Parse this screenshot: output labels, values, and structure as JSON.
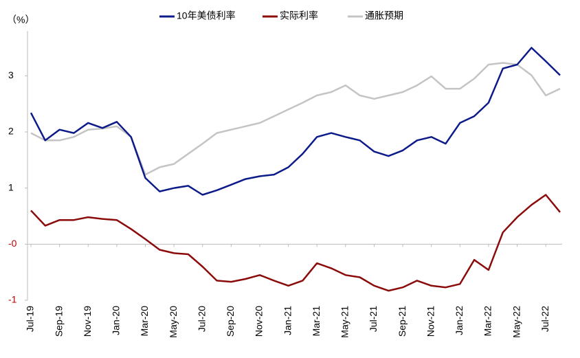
{
  "chart_data": {
    "type": "line",
    "y_unit_label": "（%）",
    "categories": [
      "Jul-19",
      null,
      "Sep-19",
      null,
      "Nov-19",
      null,
      "Jan-20",
      null,
      "Mar-20",
      null,
      "May-20",
      null,
      "Jul-20",
      null,
      "Sep-20",
      null,
      "Nov-20",
      null,
      "Jan-21",
      null,
      "Mar-21",
      null,
      "May-21",
      null,
      "Jul-21",
      null,
      "Sep-21",
      null,
      "Nov-21",
      null,
      "Jan-22",
      null,
      "Mar-22",
      null,
      "May-22",
      null,
      "Jul-22",
      null
    ],
    "series": [
      {
        "name": "10年美债利率",
        "color": "#0c1a8a",
        "values": [
          2.34,
          1.85,
          2.04,
          1.98,
          2.16,
          2.07,
          2.18,
          1.91,
          1.18,
          0.94,
          1.0,
          1.04,
          0.88,
          0.96,
          1.06,
          1.16,
          1.21,
          1.24,
          1.37,
          1.61,
          1.91,
          1.98,
          1.91,
          1.85,
          1.65,
          1.57,
          1.67,
          1.85,
          1.91,
          1.79,
          2.16,
          2.28,
          2.52,
          3.13,
          3.2,
          3.5,
          3.26,
          3.01
        ]
      },
      {
        "name": "实际利率",
        "color": "#8b0a0a",
        "values": [
          0.6,
          0.33,
          0.43,
          0.43,
          0.48,
          0.45,
          0.43,
          0.27,
          0.09,
          -0.1,
          -0.16,
          -0.18,
          -0.4,
          -0.65,
          -0.67,
          -0.62,
          -0.55,
          -0.65,
          -0.74,
          -0.65,
          -0.34,
          -0.43,
          -0.55,
          -0.59,
          -0.74,
          -0.83,
          -0.77,
          -0.65,
          -0.74,
          -0.77,
          -0.71,
          -0.28,
          -0.46,
          0.21,
          0.48,
          0.7,
          0.88,
          0.57
        ]
      },
      {
        "name": "通胀预期",
        "color": "#c4c4c4",
        "values": [
          1.98,
          1.85,
          1.85,
          1.91,
          2.04,
          2.06,
          2.1,
          1.91,
          1.24,
          1.37,
          1.43,
          1.61,
          1.79,
          1.98,
          2.04,
          2.1,
          2.16,
          2.28,
          2.4,
          2.52,
          2.65,
          2.71,
          2.83,
          2.65,
          2.59,
          2.65,
          2.71,
          2.83,
          2.99,
          2.77,
          2.77,
          2.95,
          3.2,
          3.23,
          3.2,
          3.01,
          2.65,
          2.77
        ]
      }
    ],
    "ylim": [
      -1,
      3.8
    ],
    "yticks": [
      -1,
      {
        "value": 0,
        "label": "-0"
      },
      1,
      2,
      3
    ],
    "negative_tick_color": "#c00000",
    "grid": false,
    "legend": "top"
  }
}
